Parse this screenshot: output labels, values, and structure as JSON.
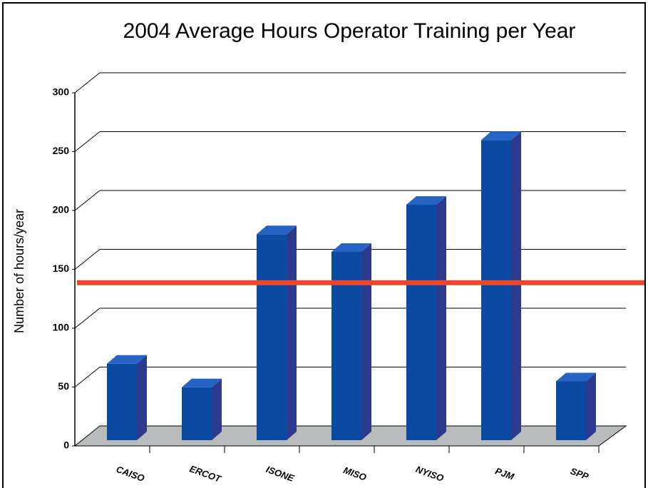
{
  "chart_data": {
    "type": "bar3d",
    "title": "2004 Average Hours Operator Training per Year",
    "y_label": "Number of hours/year",
    "categories": [
      "CAISO",
      "ERCOT",
      "ISONE",
      "MISO",
      "NYISO",
      "PJM",
      "SPP"
    ],
    "values": [
      65,
      45,
      175,
      160,
      200,
      255,
      50
    ],
    "color": "#0b4aa2",
    "ylim": [
      0,
      300
    ],
    "yticks": [
      0,
      50,
      100,
      150,
      200,
      250,
      300
    ],
    "grid": true,
    "reference_line": {
      "value": 135,
      "color": "#e8472a"
    }
  }
}
